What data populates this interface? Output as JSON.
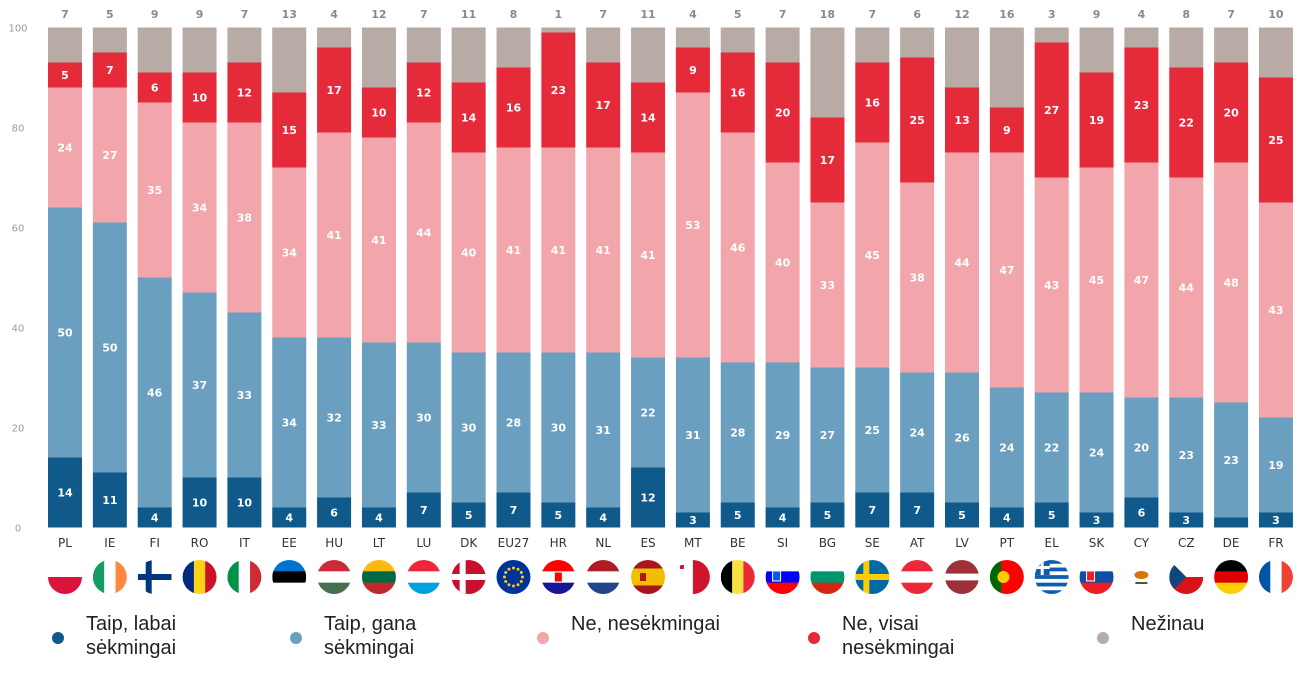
{
  "chart_data": {
    "type": "bar",
    "stacked": true,
    "ylim": [
      0,
      100
    ],
    "yticks": [
      0,
      20,
      40,
      60,
      80,
      100
    ],
    "categories": [
      "PL",
      "IE",
      "FI",
      "RO",
      "IT",
      "EE",
      "HU",
      "LT",
      "LU",
      "DK",
      "EU27",
      "HR",
      "NL",
      "ES",
      "MT",
      "BE",
      "SI",
      "BG",
      "SE",
      "AT",
      "LV",
      "PT",
      "EL",
      "SK",
      "CY",
      "CZ",
      "DE",
      "FR"
    ],
    "series": [
      {
        "name": "Taip, labai sėkmingai",
        "color": "#0f5a8a",
        "values": [
          14,
          11,
          4,
          10,
          10,
          4,
          6,
          4,
          7,
          5,
          7,
          5,
          4,
          12,
          3,
          5,
          4,
          5,
          7,
          7,
          5,
          4,
          5,
          3,
          6,
          3,
          2,
          3
        ],
        "labels": [
          14,
          11,
          4,
          10,
          10,
          4,
          6,
          4,
          7,
          5,
          7,
          5,
          4,
          12,
          3,
          5,
          4,
          5,
          7,
          7,
          5,
          4,
          5,
          3,
          6,
          3,
          null,
          3
        ]
      },
      {
        "name": "Taip, gana sėkmingai",
        "color": "#6a9fc0",
        "values": [
          50,
          50,
          46,
          37,
          33,
          34,
          32,
          33,
          30,
          30,
          28,
          30,
          31,
          22,
          31,
          28,
          29,
          27,
          25,
          24,
          26,
          24,
          22,
          24,
          20,
          23,
          23,
          19
        ]
      },
      {
        "name": "Ne, nesėkmingai",
        "color": "#f2a5ab",
        "values": [
          24,
          27,
          35,
          34,
          38,
          34,
          41,
          41,
          44,
          40,
          41,
          41,
          41,
          41,
          53,
          46,
          40,
          33,
          45,
          38,
          44,
          47,
          43,
          45,
          47,
          44,
          48,
          43
        ]
      },
      {
        "name": "Ne, visai nesėkmingai",
        "color": "#e52a3a",
        "values": [
          5,
          7,
          6,
          10,
          12,
          15,
          17,
          10,
          12,
          14,
          16,
          23,
          17,
          14,
          9,
          16,
          20,
          17,
          16,
          25,
          13,
          9,
          27,
          19,
          23,
          22,
          20,
          25
        ]
      },
      {
        "name": "Nežinau",
        "color": "#b8aaa5",
        "values": [
          7,
          5,
          9,
          9,
          7,
          13,
          4,
          12,
          7,
          11,
          8,
          1,
          7,
          11,
          4,
          5,
          7,
          18,
          7,
          6,
          12,
          16,
          3,
          9,
          4,
          8,
          7,
          10
        ]
      }
    ]
  },
  "legend": [
    {
      "label": "Taip, labai\nsėkmingai",
      "color": "#0f5a8a"
    },
    {
      "label": "Taip, gana\nsėkmingai",
      "color": "#6a9fc0"
    },
    {
      "label": "Ne, nesėkmingai",
      "color": "#f2a5ab"
    },
    {
      "label": "Ne, visai\nnesėkmingai",
      "color": "#e52a3a"
    },
    {
      "label": "Nežinau",
      "color": "#b8aaa5"
    }
  ],
  "flags": [
    {
      "country": "PL",
      "icon": "flag-pl-icon",
      "colors": [
        "#ffffff",
        "#dc143c"
      ],
      "dir": "h"
    },
    {
      "country": "IE",
      "icon": "flag-ie-icon",
      "colors": [
        "#169b62",
        "#ffffff",
        "#ff883e"
      ],
      "dir": "v"
    },
    {
      "country": "FI",
      "icon": "flag-fi-icon",
      "colors": [
        "#ffffff"
      ],
      "dir": "cross",
      "cross": "#003580"
    },
    {
      "country": "RO",
      "icon": "flag-ro-icon",
      "colors": [
        "#002b7f",
        "#fcd116",
        "#ce1126"
      ],
      "dir": "v"
    },
    {
      "country": "IT",
      "icon": "flag-it-icon",
      "colors": [
        "#009246",
        "#ffffff",
        "#ce2b37"
      ],
      "dir": "v"
    },
    {
      "country": "EE",
      "icon": "flag-ee-icon",
      "colors": [
        "#0072ce",
        "#000000",
        "#ffffff"
      ],
      "dir": "h"
    },
    {
      "country": "HU",
      "icon": "flag-hu-icon",
      "colors": [
        "#ce2939",
        "#ffffff",
        "#477050"
      ],
      "dir": "h"
    },
    {
      "country": "LT",
      "icon": "flag-lt-icon",
      "colors": [
        "#fdb913",
        "#006a44",
        "#c1272d"
      ],
      "dir": "h"
    },
    {
      "country": "LU",
      "icon": "flag-lu-icon",
      "colors": [
        "#ed2939",
        "#ffffff",
        "#00a1de"
      ],
      "dir": "h"
    },
    {
      "country": "DK",
      "icon": "flag-dk-icon",
      "colors": [
        "#c8102e"
      ],
      "dir": "cross",
      "cross": "#ffffff"
    },
    {
      "country": "EU27",
      "icon": "flag-eu-icon",
      "colors": [
        "#003399"
      ],
      "dir": "eu"
    },
    {
      "country": "HR",
      "icon": "flag-hr-icon",
      "colors": [
        "#ff0000",
        "#ffffff",
        "#171796"
      ],
      "dir": "h"
    },
    {
      "country": "NL",
      "icon": "flag-nl-icon",
      "colors": [
        "#ae1c28",
        "#ffffff",
        "#21468b"
      ],
      "dir": "h"
    },
    {
      "country": "ES",
      "icon": "flag-es-icon",
      "colors": [
        "#aa151b",
        "#f1bf00",
        "#f1bf00",
        "#aa151b"
      ],
      "dir": "h"
    },
    {
      "country": "MT",
      "icon": "flag-mt-icon",
      "colors": [
        "#ffffff",
        "#cf142b"
      ],
      "dir": "v"
    },
    {
      "country": "BE",
      "icon": "flag-be-icon",
      "colors": [
        "#000000",
        "#fae042",
        "#ed2939"
      ],
      "dir": "v"
    },
    {
      "country": "SI",
      "icon": "flag-si-icon",
      "colors": [
        "#ffffff",
        "#0000ff",
        "#ff0000"
      ],
      "dir": "h"
    },
    {
      "country": "BG",
      "icon": "flag-bg-icon",
      "colors": [
        "#ffffff",
        "#00966e",
        "#d62612"
      ],
      "dir": "h"
    },
    {
      "country": "SE",
      "icon": "flag-se-icon",
      "colors": [
        "#006aa7"
      ],
      "dir": "cross",
      "cross": "#fecc00"
    },
    {
      "country": "AT",
      "icon": "flag-at-icon",
      "colors": [
        "#ed2939",
        "#ffffff",
        "#ed2939"
      ],
      "dir": "h"
    },
    {
      "country": "LV",
      "icon": "flag-lv-icon",
      "colors": [
        "#9e3039",
        "#9e3039",
        "#ffffff",
        "#9e3039",
        "#9e3039"
      ],
      "dir": "h"
    },
    {
      "country": "PT",
      "icon": "flag-pt-icon",
      "colors": [
        "#006600",
        "#ff0000",
        "#ff0000"
      ],
      "dir": "v"
    },
    {
      "country": "EL",
      "icon": "flag-el-icon",
      "colors": [
        "#0d5eaf",
        "#ffffff",
        "#0d5eaf",
        "#ffffff",
        "#0d5eaf",
        "#ffffff",
        "#0d5eaf",
        "#ffffff",
        "#0d5eaf"
      ],
      "dir": "h"
    },
    {
      "country": "SK",
      "icon": "flag-sk-icon",
      "colors": [
        "#ffffff",
        "#0b4ea2",
        "#ee1c25"
      ],
      "dir": "h"
    },
    {
      "country": "CY",
      "icon": "flag-cy-icon",
      "colors": [
        "#ffffff"
      ],
      "dir": "cy"
    },
    {
      "country": "CZ",
      "icon": "flag-cz-icon",
      "colors": [
        "#ffffff",
        "#d7141a"
      ],
      "dir": "cz"
    },
    {
      "country": "DE",
      "icon": "flag-de-icon",
      "colors": [
        "#000000",
        "#dd0000",
        "#ffce00"
      ],
      "dir": "h"
    },
    {
      "country": "FR",
      "icon": "flag-fr-icon",
      "colors": [
        "#0055a4",
        "#ffffff",
        "#ef4135"
      ],
      "dir": "v"
    }
  ]
}
